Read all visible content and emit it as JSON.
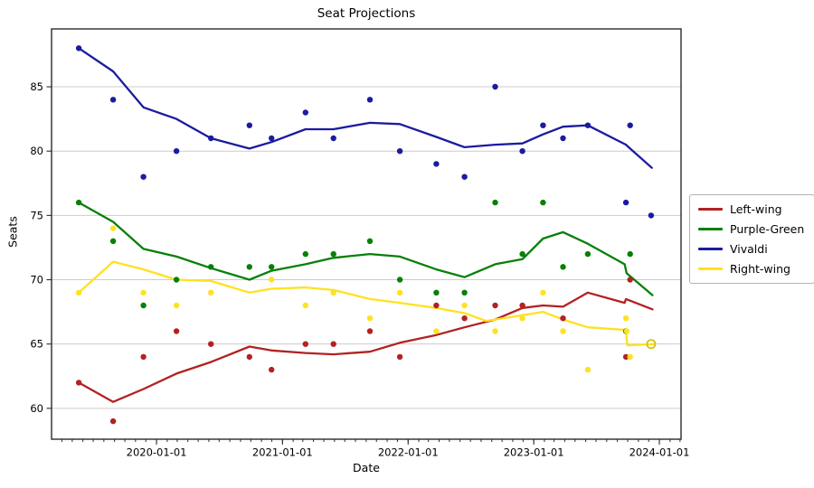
{
  "title": "Seat Projections",
  "axes": {
    "xlabel": "Date",
    "ylabel": "Seats"
  },
  "legend": {
    "position": "outside-center-right",
    "entries": [
      "Left-wing",
      "Purple-Green",
      "Vivaldi",
      "Right-wing"
    ]
  },
  "chart_data": {
    "type": "scatter",
    "subtype": "poll-scatter-with-trend-lines",
    "title": "Seat Projections",
    "xlabel": "Date",
    "ylabel": "Seats",
    "grid": "horizontal-only",
    "grid_color": "#cccccc",
    "spine_color": "#2b2b2b",
    "x_ticks": [
      "2020-01-01",
      "2021-01-01",
      "2022-01-01",
      "2023-01-01",
      "2024-01-01"
    ],
    "x_minor_ticks": "monthly",
    "y_ticks": [
      60,
      65,
      70,
      75,
      80,
      85
    ],
    "x_range": [
      "2019-03-02",
      "2024-03-04"
    ],
    "y_range": [
      57.6,
      89.5
    ],
    "legend_position": "center right outside",
    "series": [
      {
        "name": "Left-wing",
        "color": "#b22222",
        "scatter": [
          [
            "2019-05-20",
            62
          ],
          [
            "2019-08-28",
            59
          ],
          [
            "2019-11-24",
            64
          ],
          [
            "2020-02-28",
            66
          ],
          [
            "2020-06-07",
            65
          ],
          [
            "2020-09-27",
            64
          ],
          [
            "2020-11-30",
            63
          ],
          [
            "2021-03-09",
            65
          ],
          [
            "2021-05-29",
            65
          ],
          [
            "2021-09-12",
            66
          ],
          [
            "2021-12-08",
            64
          ],
          [
            "2022-03-24",
            68
          ],
          [
            "2022-06-14",
            67
          ],
          [
            "2022-09-11",
            68
          ],
          [
            "2022-11-29",
            68
          ],
          [
            "2023-03-27",
            67
          ],
          [
            "2023-09-26",
            64
          ],
          [
            "2023-10-08",
            70
          ]
        ],
        "trend": [
          [
            "2019-05-20",
            62
          ],
          [
            "2019-08-28",
            60.5
          ],
          [
            "2019-11-24",
            61.5
          ],
          [
            "2020-02-28",
            62.7
          ],
          [
            "2020-06-07",
            63.6
          ],
          [
            "2020-09-27",
            64.8
          ],
          [
            "2020-11-30",
            64.5
          ],
          [
            "2021-03-09",
            64.3
          ],
          [
            "2021-05-29",
            64.2
          ],
          [
            "2021-09-12",
            64.4
          ],
          [
            "2021-12-08",
            65.1
          ],
          [
            "2022-03-24",
            65.7
          ],
          [
            "2022-06-14",
            66.3
          ],
          [
            "2022-09-11",
            66.9
          ],
          [
            "2022-11-29",
            67.8
          ],
          [
            "2023-01-28",
            68.0
          ],
          [
            "2023-03-27",
            67.9
          ],
          [
            "2023-06-07",
            69.0
          ],
          [
            "2023-09-22",
            68.2
          ],
          [
            "2023-09-26",
            68.5
          ],
          [
            "2023-12-12",
            67.7
          ]
        ]
      },
      {
        "name": "Purple-Green",
        "color": "#068006",
        "scatter": [
          [
            "2019-05-20",
            76
          ],
          [
            "2019-08-28",
            73
          ],
          [
            "2019-11-24",
            68
          ],
          [
            "2020-02-28",
            70
          ],
          [
            "2020-06-07",
            71
          ],
          [
            "2020-09-27",
            71
          ],
          [
            "2020-11-30",
            71
          ],
          [
            "2021-03-09",
            72
          ],
          [
            "2021-05-29",
            72
          ],
          [
            "2021-09-12",
            73
          ],
          [
            "2021-12-08",
            70
          ],
          [
            "2022-03-24",
            69
          ],
          [
            "2022-06-14",
            69
          ],
          [
            "2022-09-11",
            76
          ],
          [
            "2022-11-29",
            72
          ],
          [
            "2023-01-28",
            76
          ],
          [
            "2023-03-27",
            71
          ],
          [
            "2023-06-07",
            72
          ],
          [
            "2023-09-26",
            66
          ],
          [
            "2023-10-08",
            72
          ]
        ],
        "trend": [
          [
            "2019-05-20",
            76
          ],
          [
            "2019-08-28",
            74.5
          ],
          [
            "2019-11-24",
            72.4
          ],
          [
            "2020-02-28",
            71.8
          ],
          [
            "2020-06-07",
            70.9
          ],
          [
            "2020-09-27",
            70.0
          ],
          [
            "2020-11-30",
            70.7
          ],
          [
            "2021-03-09",
            71.2
          ],
          [
            "2021-05-29",
            71.7
          ],
          [
            "2021-09-12",
            72.0
          ],
          [
            "2021-12-08",
            71.8
          ],
          [
            "2022-03-24",
            70.8
          ],
          [
            "2022-06-14",
            70.2
          ],
          [
            "2022-09-11",
            71.2
          ],
          [
            "2022-11-29",
            71.6
          ],
          [
            "2023-01-28",
            73.2
          ],
          [
            "2023-03-27",
            73.7
          ],
          [
            "2023-06-07",
            72.8
          ],
          [
            "2023-09-22",
            71.2
          ],
          [
            "2023-09-28",
            70.5
          ],
          [
            "2023-12-12",
            68.8
          ]
        ]
      },
      {
        "name": "Vivaldi",
        "color": "#1b1b9f",
        "scatter": [
          [
            "2019-05-20",
            88
          ],
          [
            "2019-08-28",
            84
          ],
          [
            "2019-11-24",
            78
          ],
          [
            "2020-02-28",
            80
          ],
          [
            "2020-06-07",
            81
          ],
          [
            "2020-09-27",
            82
          ],
          [
            "2020-11-30",
            81
          ],
          [
            "2021-03-09",
            83
          ],
          [
            "2021-05-29",
            81
          ],
          [
            "2021-09-12",
            84
          ],
          [
            "2021-12-08",
            80
          ],
          [
            "2022-03-24",
            79
          ],
          [
            "2022-06-14",
            78
          ],
          [
            "2022-09-11",
            85
          ],
          [
            "2022-11-29",
            80
          ],
          [
            "2023-01-28",
            82
          ],
          [
            "2023-03-27",
            81
          ],
          [
            "2023-06-07",
            82
          ],
          [
            "2023-09-26",
            76
          ],
          [
            "2023-10-08",
            82
          ],
          [
            "2023-12-08",
            75
          ]
        ],
        "trend": [
          [
            "2019-05-20",
            88
          ],
          [
            "2019-08-28",
            86.2
          ],
          [
            "2019-11-24",
            83.4
          ],
          [
            "2020-02-28",
            82.5
          ],
          [
            "2020-06-07",
            81.0
          ],
          [
            "2020-09-27",
            80.2
          ],
          [
            "2020-11-30",
            80.7
          ],
          [
            "2021-03-09",
            81.7
          ],
          [
            "2021-05-29",
            81.7
          ],
          [
            "2021-09-12",
            82.2
          ],
          [
            "2021-12-08",
            82.1
          ],
          [
            "2022-03-24",
            81.1
          ],
          [
            "2022-06-14",
            80.3
          ],
          [
            "2022-09-11",
            80.5
          ],
          [
            "2022-11-29",
            80.6
          ],
          [
            "2023-01-28",
            81.3
          ],
          [
            "2023-03-27",
            81.9
          ],
          [
            "2023-06-07",
            82.0
          ],
          [
            "2023-09-26",
            80.5
          ],
          [
            "2023-10-08",
            80.2
          ],
          [
            "2023-12-10",
            78.7
          ]
        ]
      },
      {
        "name": "Right-wing",
        "color": "#ffe120",
        "scatter": [
          [
            "2019-05-20",
            69
          ],
          [
            "2019-08-28",
            74
          ],
          [
            "2019-11-24",
            69
          ],
          [
            "2020-02-28",
            68
          ],
          [
            "2020-06-07",
            69
          ],
          [
            "2020-11-30",
            70
          ],
          [
            "2021-03-09",
            68
          ],
          [
            "2021-05-29",
            69
          ],
          [
            "2021-09-12",
            67
          ],
          [
            "2021-12-08",
            69
          ],
          [
            "2022-03-24",
            66
          ],
          [
            "2022-06-14",
            68
          ],
          [
            "2022-09-11",
            66
          ],
          [
            "2022-11-29",
            67
          ],
          [
            "2023-01-28",
            69
          ],
          [
            "2023-03-27",
            66
          ],
          [
            "2023-06-07",
            63
          ],
          [
            "2023-09-26",
            67
          ],
          [
            "2023-09-28",
            66
          ],
          [
            "2023-10-08",
            64
          ]
        ],
        "trend": [
          [
            "2019-05-20",
            69
          ],
          [
            "2019-08-28",
            71.4
          ],
          [
            "2019-11-24",
            70.8
          ],
          [
            "2020-02-28",
            70.0
          ],
          [
            "2020-06-07",
            69.9
          ],
          [
            "2020-09-27",
            69.0
          ],
          [
            "2020-11-30",
            69.3
          ],
          [
            "2021-03-09",
            69.4
          ],
          [
            "2021-05-29",
            69.2
          ],
          [
            "2021-09-12",
            68.5
          ],
          [
            "2021-12-08",
            68.2
          ],
          [
            "2022-03-24",
            67.8
          ],
          [
            "2022-06-14",
            67.4
          ],
          [
            "2022-08-15",
            66.8
          ],
          [
            "2022-09-11",
            66.9
          ],
          [
            "2023-01-28",
            67.5
          ],
          [
            "2023-03-27",
            66.9
          ],
          [
            "2023-06-07",
            66.3
          ],
          [
            "2023-09-22",
            66.1
          ],
          [
            "2023-09-26",
            66.0
          ],
          [
            "2023-09-30",
            64.9
          ],
          [
            "2023-12-20",
            65.0
          ]
        ],
        "end_marker": {
          "date": "2023-12-08",
          "value": 65,
          "style": "open-circle",
          "ring_color": "#d4c020"
        }
      }
    ]
  }
}
